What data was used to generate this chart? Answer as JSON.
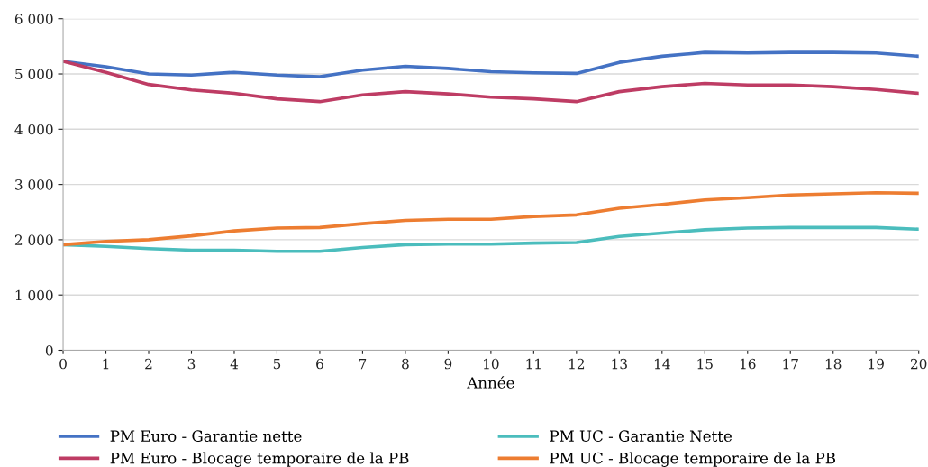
{
  "chart_data": {
    "type": "line",
    "xlabel": "Année",
    "x": [
      0,
      1,
      2,
      3,
      4,
      5,
      6,
      7,
      8,
      9,
      10,
      11,
      12,
      13,
      14,
      15,
      16,
      17,
      18,
      19,
      20
    ],
    "xlim": [
      0,
      20
    ],
    "xticks": [
      0,
      1,
      2,
      3,
      4,
      5,
      6,
      7,
      8,
      9,
      10,
      11,
      12,
      13,
      14,
      15,
      16,
      17,
      18,
      19,
      20
    ],
    "ylim": [
      0,
      6000
    ],
    "yticks": [
      {
        "value": 0,
        "label": "0"
      },
      {
        "value": 1000,
        "label": "1 000"
      },
      {
        "value": 2000,
        "label": "2 000"
      },
      {
        "value": 3000,
        "label": "3 000"
      },
      {
        "value": 4000,
        "label": "4 000"
      },
      {
        "value": 5000,
        "label": "5 000"
      },
      {
        "value": 6000,
        "label": "6 000"
      }
    ],
    "grid": "y",
    "legend": "bottom",
    "marker": "none",
    "line_style": "solid",
    "series": [
      {
        "name": "PM Euro - Garantie nette",
        "color": "#4472c4",
        "values": [
          5230,
          5130,
          5000,
          4980,
          5030,
          4980,
          4950,
          5070,
          5140,
          5100,
          5040,
          5020,
          5010,
          5210,
          5320,
          5390,
          5380,
          5390,
          5390,
          5380,
          5320
        ]
      },
      {
        "name": "PM Euro - Blocage temporaire de la PB",
        "color": "#be3c64",
        "values": [
          5230,
          5030,
          4810,
          4710,
          4650,
          4550,
          4500,
          4620,
          4680,
          4640,
          4580,
          4550,
          4500,
          4680,
          4770,
          4830,
          4800,
          4800,
          4770,
          4720,
          4650
        ]
      },
      {
        "name": "PM UC - Garantie Nette",
        "color": "#4bbdbd",
        "values": [
          1910,
          1880,
          1840,
          1810,
          1810,
          1790,
          1790,
          1860,
          1910,
          1920,
          1920,
          1940,
          1950,
          2060,
          2120,
          2180,
          2210,
          2220,
          2220,
          2220,
          2190
        ]
      },
      {
        "name": "PM UC - Blocage temporaire de la PB",
        "color": "#ed7d31",
        "values": [
          1910,
          1970,
          2000,
          2070,
          2160,
          2210,
          2220,
          2290,
          2350,
          2370,
          2370,
          2420,
          2450,
          2570,
          2640,
          2720,
          2760,
          2810,
          2830,
          2850,
          2840
        ]
      }
    ]
  }
}
